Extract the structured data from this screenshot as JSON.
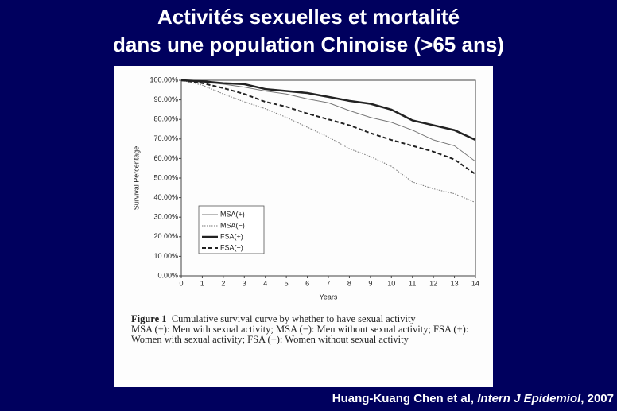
{
  "chart_data": {
    "type": "line",
    "title": [
      "Activités sexuelles et mortalité",
      "dans une population Chinoise (>65 ans)"
    ],
    "x_label": "Years",
    "y_label": "Survival Percentage",
    "x": [
      0,
      1,
      2,
      3,
      4,
      5,
      6,
      7,
      8,
      9,
      10,
      11,
      12,
      13,
      14
    ],
    "xlim": [
      0,
      14
    ],
    "xticks": [
      0,
      1,
      2,
      3,
      4,
      5,
      6,
      7,
      8,
      9,
      10,
      11,
      12,
      13,
      14
    ],
    "ylim": [
      0,
      100
    ],
    "yticks": [
      {
        "value": 0,
        "label": "0.00%"
      },
      {
        "value": 10,
        "label": "10.00%"
      },
      {
        "value": 20,
        "label": "20.00%"
      },
      {
        "value": 30,
        "label": "30.00%"
      },
      {
        "value": 40,
        "label": "40.00%"
      },
      {
        "value": 50,
        "label": "50.00%"
      },
      {
        "value": 60,
        "label": "60.00%"
      },
      {
        "value": 70,
        "label": "70.00%"
      },
      {
        "value": 80,
        "label": "80.00%"
      },
      {
        "value": 90,
        "label": "90.00%"
      },
      {
        "value": 100,
        "label": "100.00%"
      }
    ],
    "grid": false,
    "legend": "lower-left",
    "series": [
      {
        "name": "MSA(+)",
        "color": "#777777",
        "line_style": "solid",
        "line_width": 1,
        "values": [
          100,
          99,
          98,
          96.5,
          94.5,
          93,
          90.5,
          88.5,
          84.5,
          81,
          78.5,
          74.5,
          69.5,
          66.5,
          58.5
        ]
      },
      {
        "name": "MSA(−)",
        "color": "#777777",
        "line_style": "dotted",
        "line_width": 1,
        "values": [
          100,
          97.5,
          93,
          89,
          85.5,
          81,
          76,
          71,
          65,
          61,
          56,
          48,
          44.5,
          42,
          37.5
        ]
      },
      {
        "name": "FSA(+)",
        "color": "#222222",
        "line_style": "solid",
        "line_width": 2.5,
        "values": [
          100,
          99.5,
          98.5,
          98,
          95.5,
          94.5,
          93.5,
          91.5,
          89.5,
          88,
          85,
          79.5,
          77,
          74.5,
          69.5
        ]
      },
      {
        "name": "FSA(−)",
        "color": "#222222",
        "line_style": "dashed",
        "line_width": 2,
        "values": [
          100,
          98.5,
          96,
          93,
          89,
          86.5,
          83,
          80,
          77,
          73,
          69.5,
          66.5,
          63.5,
          59.5,
          52
        ]
      }
    ],
    "caption": {
      "label": "Figure 1",
      "text": "Cumulative survival curve by whether to have sexual activity",
      "notes": "MSA (+): Men with sexual activity; MSA (−): Men without sexual activity; FSA (+): Women with sexual activity; FSA (−): Women without sexual activity"
    },
    "source": [
      "Huang-Kuang Chen et al, ",
      "Intern J Epidemiol",
      ", 2007"
    ]
  }
}
